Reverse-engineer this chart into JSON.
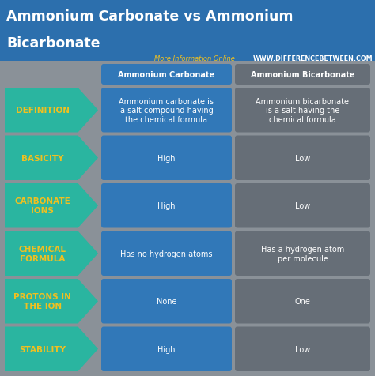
{
  "title_line1": "Ammonium Carbonate vs Ammonium",
  "title_line2": "Bicarbonate",
  "subtitle": "More Information Online",
  "website": "WWW.DIFFERENCEBETWEEN.COM",
  "col1_header": "Ammonium Carbonate",
  "col2_header": "Ammonium Bicarbonate",
  "bg_color": "#8a9198",
  "title_bg_color": "#2c6fad",
  "teal_color": "#2ab5a0",
  "blue_color": "#3178b8",
  "dark_gray_color": "#666e77",
  "yellow_color": "#f0c020",
  "white_color": "#ffffff",
  "rows": [
    {
      "label": "DEFINITION",
      "col1": "Ammonium carbonate is\na salt compound having\nthe chemical formula",
      "col2": "Ammonium bicarbonate\nis a salt having the\nchemical formula"
    },
    {
      "label": "BASICITY",
      "col1": "High",
      "col2": "Low"
    },
    {
      "label": "CARBONATE\nIONS",
      "col1": "High",
      "col2": "Low"
    },
    {
      "label": "CHEMICAL\nFORMULA",
      "col1": "Has no hydrogen atoms",
      "col2": "Has a hydrogen atom\nper molecule"
    },
    {
      "label": "PROTONS IN\nTHE ION",
      "col1": "None",
      "col2": "One"
    },
    {
      "label": "STABILITY",
      "col1": "High",
      "col2": "Low"
    }
  ]
}
